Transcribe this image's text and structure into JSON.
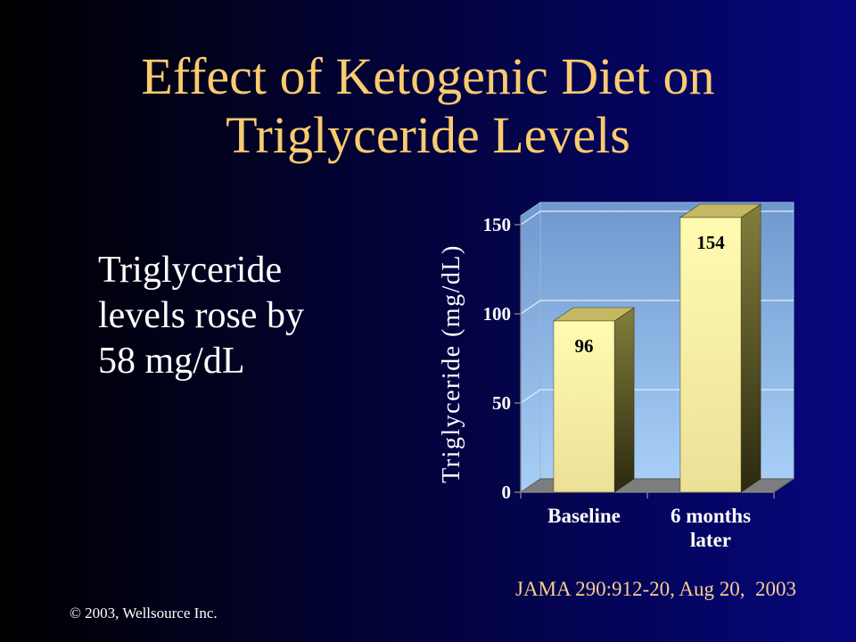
{
  "slide": {
    "title_lines": [
      "Effect of Ketogenic Diet on",
      "Triglyceride Levels"
    ],
    "body_lines": [
      "Triglyceride",
      "levels rose by",
      "58 mg/dL"
    ],
    "citation": "JAMA 290:912-20, Aug 20,  2003",
    "copyright": "© 2003, Wellsource Inc."
  },
  "colors": {
    "background_left": "#000000",
    "background_right": "#06067c",
    "title": "#facb6f",
    "body_text": "#ffffff",
    "citation": "#f6cf8c",
    "wall_top": "#6f98cf",
    "wall_bottom": "#a7cff6",
    "wall_edge": "#9ab4d4",
    "floor": "#7d7d7d",
    "gridline": "#e6eef7",
    "axis": "#8a8a8a",
    "bar_front_top": "#fffbb0",
    "bar_front_bottom": "#ece096",
    "bar_side_top": "#847e3c",
    "bar_side_bottom": "#2b2910",
    "bar_top": "#c4b962"
  },
  "chart_data": {
    "type": "bar",
    "three_d": true,
    "categories": [
      "Baseline",
      "6 months later"
    ],
    "values": [
      96,
      154
    ],
    "ylabel": "Triglyceride (mg/dL)",
    "ylim": [
      0,
      155
    ],
    "yticks": [
      0,
      50,
      100,
      150
    ],
    "grid": true,
    "legend": "none"
  }
}
